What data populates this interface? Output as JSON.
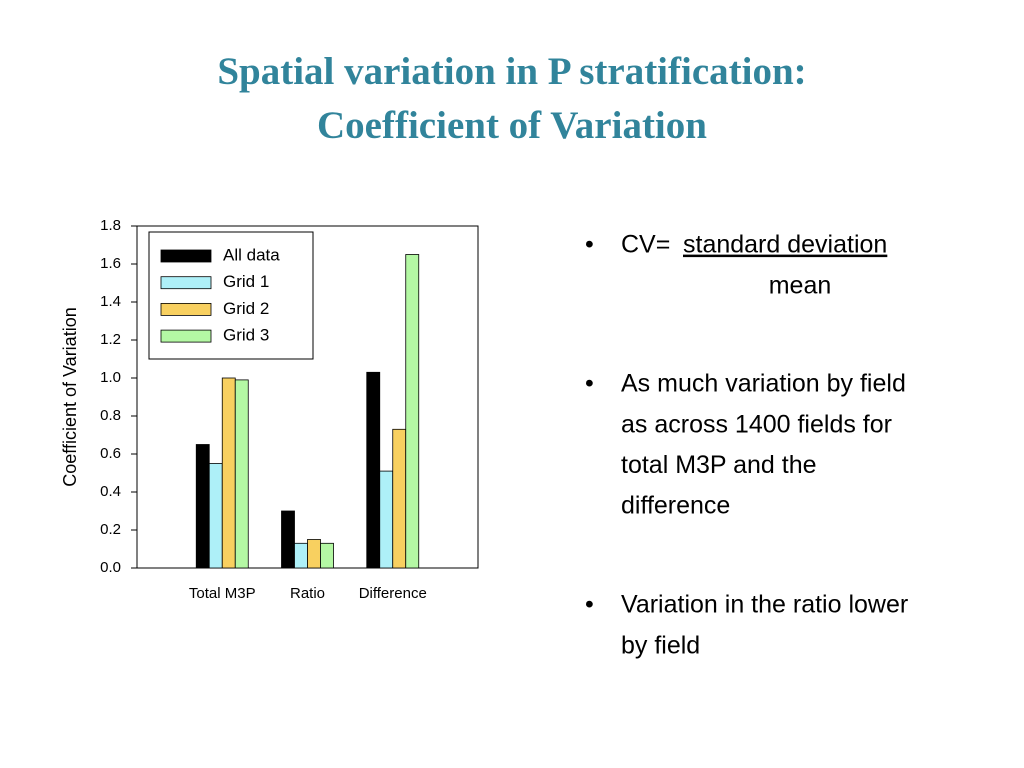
{
  "title": [
    "Spatial variation in P stratification:",
    "Coefficient of Variation"
  ],
  "chart_data": {
    "type": "bar",
    "y_label": "Coefficient of Variation",
    "categories": [
      "Total M3P",
      "Ratio",
      "Difference"
    ],
    "series": [
      {
        "name": "All data",
        "color": "#000000",
        "values": [
          0.65,
          0.3,
          1.03
        ]
      },
      {
        "name": "Grid 1",
        "color": "#aef0f8",
        "values": [
          0.55,
          0.13,
          0.51
        ]
      },
      {
        "name": "Grid 2",
        "color": "#f8d060",
        "values": [
          1.0,
          0.15,
          0.73
        ]
      },
      {
        "name": "Grid 3",
        "color": "#b4f8a4",
        "values": [
          0.99,
          0.13,
          1.65
        ]
      }
    ],
    "ylim": [
      0,
      1.8
    ],
    "yticks": [
      {
        "value": 0,
        "label": "0.0"
      },
      0.2,
      0.4,
      0.6,
      0.8,
      {
        "value": 1,
        "label": "1.0"
      },
      1.2,
      1.4,
      1.6,
      1.8
    ],
    "grid": false,
    "legend": "upper-left"
  },
  "bullets": [
    {
      "lead": "CV=",
      "numerator": "standard deviation",
      "denominator": "mean"
    },
    [
      "As much variation by field",
      "as across 1400 fields for",
      "total M3P and the",
      "difference"
    ],
    [
      "Variation in the ratio lower",
      "by field"
    ]
  ]
}
